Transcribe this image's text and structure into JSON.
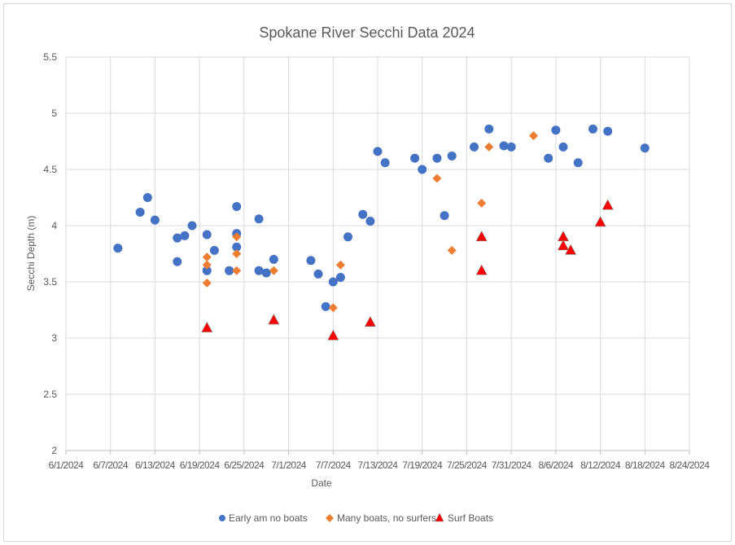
{
  "chart_data": {
    "type": "scatter",
    "title": "Spokane River Secchi Data 2024",
    "xlabel": "Date",
    "ylabel": "Secchi Depth (m)",
    "xlim": [
      "2024-06-01",
      "2024-08-24"
    ],
    "ylim": [
      2,
      5.5
    ],
    "x_tick_step_days": 6,
    "x_tick_labels": [
      "6/1/2024",
      "6/7/2024",
      "6/13/2024",
      "6/19/2024",
      "6/25/2024",
      "7/1/2024",
      "7/7/2024",
      "7/13/2024",
      "7/19/2024",
      "7/25/2024",
      "7/31/2024",
      "8/6/2024",
      "8/12/2024",
      "8/18/2024",
      "8/24/2024"
    ],
    "y_tick_labels": [
      "2",
      "2.5",
      "3",
      "3.5",
      "4",
      "4.5",
      "5",
      "5.5"
    ],
    "grid": true,
    "legend_position": "bottom",
    "series": [
      {
        "name": "Early am no boats",
        "color": "#4472C4",
        "marker": "circle",
        "points": [
          [
            "2024-06-08",
            3.8
          ],
          [
            "2024-06-11",
            4.12
          ],
          [
            "2024-06-12",
            4.25
          ],
          [
            "2024-06-13",
            4.05
          ],
          [
            "2024-06-16",
            3.89
          ],
          [
            "2024-06-16",
            3.68
          ],
          [
            "2024-06-17",
            3.91
          ],
          [
            "2024-06-18",
            4.0
          ],
          [
            "2024-06-20",
            3.92
          ],
          [
            "2024-06-20",
            3.6
          ],
          [
            "2024-06-21",
            3.78
          ],
          [
            "2024-06-23",
            3.6
          ],
          [
            "2024-06-24",
            4.17
          ],
          [
            "2024-06-24",
            3.93
          ],
          [
            "2024-06-24",
            3.81
          ],
          [
            "2024-06-27",
            4.06
          ],
          [
            "2024-06-27",
            3.6
          ],
          [
            "2024-06-28",
            3.58
          ],
          [
            "2024-06-29",
            3.7
          ],
          [
            "2024-07-04",
            3.69
          ],
          [
            "2024-07-05",
            3.57
          ],
          [
            "2024-07-06",
            3.28
          ],
          [
            "2024-07-07",
            3.5
          ],
          [
            "2024-07-08",
            3.54
          ],
          [
            "2024-07-09",
            3.9
          ],
          [
            "2024-07-11",
            4.1
          ],
          [
            "2024-07-12",
            4.04
          ],
          [
            "2024-07-13",
            4.66
          ],
          [
            "2024-07-14",
            4.56
          ],
          [
            "2024-07-18",
            4.6
          ],
          [
            "2024-07-19",
            4.5
          ],
          [
            "2024-07-21",
            4.6
          ],
          [
            "2024-07-22",
            4.09
          ],
          [
            "2024-07-23",
            4.62
          ],
          [
            "2024-07-26",
            4.7
          ],
          [
            "2024-07-28",
            4.86
          ],
          [
            "2024-07-30",
            4.71
          ],
          [
            "2024-07-31",
            4.7
          ],
          [
            "2024-08-05",
            4.6
          ],
          [
            "2024-08-06",
            4.85
          ],
          [
            "2024-08-07",
            4.7
          ],
          [
            "2024-08-09",
            4.56
          ],
          [
            "2024-08-11",
            4.86
          ],
          [
            "2024-08-13",
            4.84
          ],
          [
            "2024-08-18",
            4.69
          ]
        ]
      },
      {
        "name": "Many boats, no surfers",
        "color": "#ED7D31",
        "marker": "diamond",
        "points": [
          [
            "2024-06-20",
            3.72
          ],
          [
            "2024-06-20",
            3.65
          ],
          [
            "2024-06-20",
            3.49
          ],
          [
            "2024-06-24",
            3.9
          ],
          [
            "2024-06-24",
            3.75
          ],
          [
            "2024-06-24",
            3.6
          ],
          [
            "2024-06-29",
            3.6
          ],
          [
            "2024-07-07",
            3.27
          ],
          [
            "2024-07-08",
            3.65
          ],
          [
            "2024-07-21",
            4.42
          ],
          [
            "2024-07-23",
            3.78
          ],
          [
            "2024-07-27",
            4.2
          ],
          [
            "2024-07-28",
            4.7
          ],
          [
            "2024-08-03",
            4.8
          ]
        ]
      },
      {
        "name": "Surf Boats",
        "color": "#FF0000",
        "marker": "triangle",
        "points": [
          [
            "2024-06-20",
            3.09
          ],
          [
            "2024-06-29",
            3.16
          ],
          [
            "2024-07-07",
            3.02
          ],
          [
            "2024-07-12",
            3.14
          ],
          [
            "2024-07-27",
            3.9
          ],
          [
            "2024-07-27",
            3.6
          ],
          [
            "2024-08-07",
            3.9
          ],
          [
            "2024-08-07",
            3.82
          ],
          [
            "2024-08-08",
            3.78
          ],
          [
            "2024-08-12",
            4.03
          ],
          [
            "2024-08-13",
            4.18
          ]
        ]
      }
    ]
  }
}
